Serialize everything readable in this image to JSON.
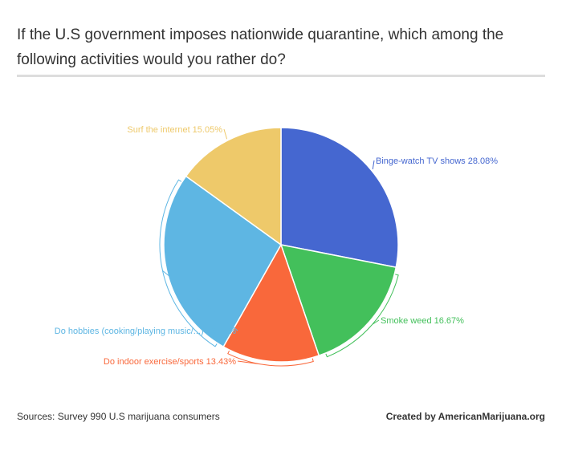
{
  "header": {
    "title": "If the U.S government imposes nationwide quarantine, which among the following activities would you rather do?"
  },
  "chart_data": {
    "type": "pie",
    "title": "If the U.S government imposes nationwide quarantine, which among the following activities would you rather do?",
    "unit": "%",
    "slices": [
      {
        "label": "Binge-watch TV shows",
        "value": 28.08,
        "color": "#4567d0"
      },
      {
        "label": "Smoke weed",
        "value": 16.67,
        "color": "#43c05b"
      },
      {
        "label": "Do indoor exercise/sports",
        "value": 13.43,
        "color": "#f9683b"
      },
      {
        "label": "Do hobbies (cooking/playing music/...)",
        "value": 26.77,
        "color": "#5eb6e3"
      },
      {
        "label": "Surf the internet",
        "value": 15.05,
        "color": "#eec96a"
      }
    ]
  },
  "footer": {
    "source": "Sources: Survey 990 U.S marijuana consumers",
    "credit": "Created by AmericanMarijuana.org"
  }
}
